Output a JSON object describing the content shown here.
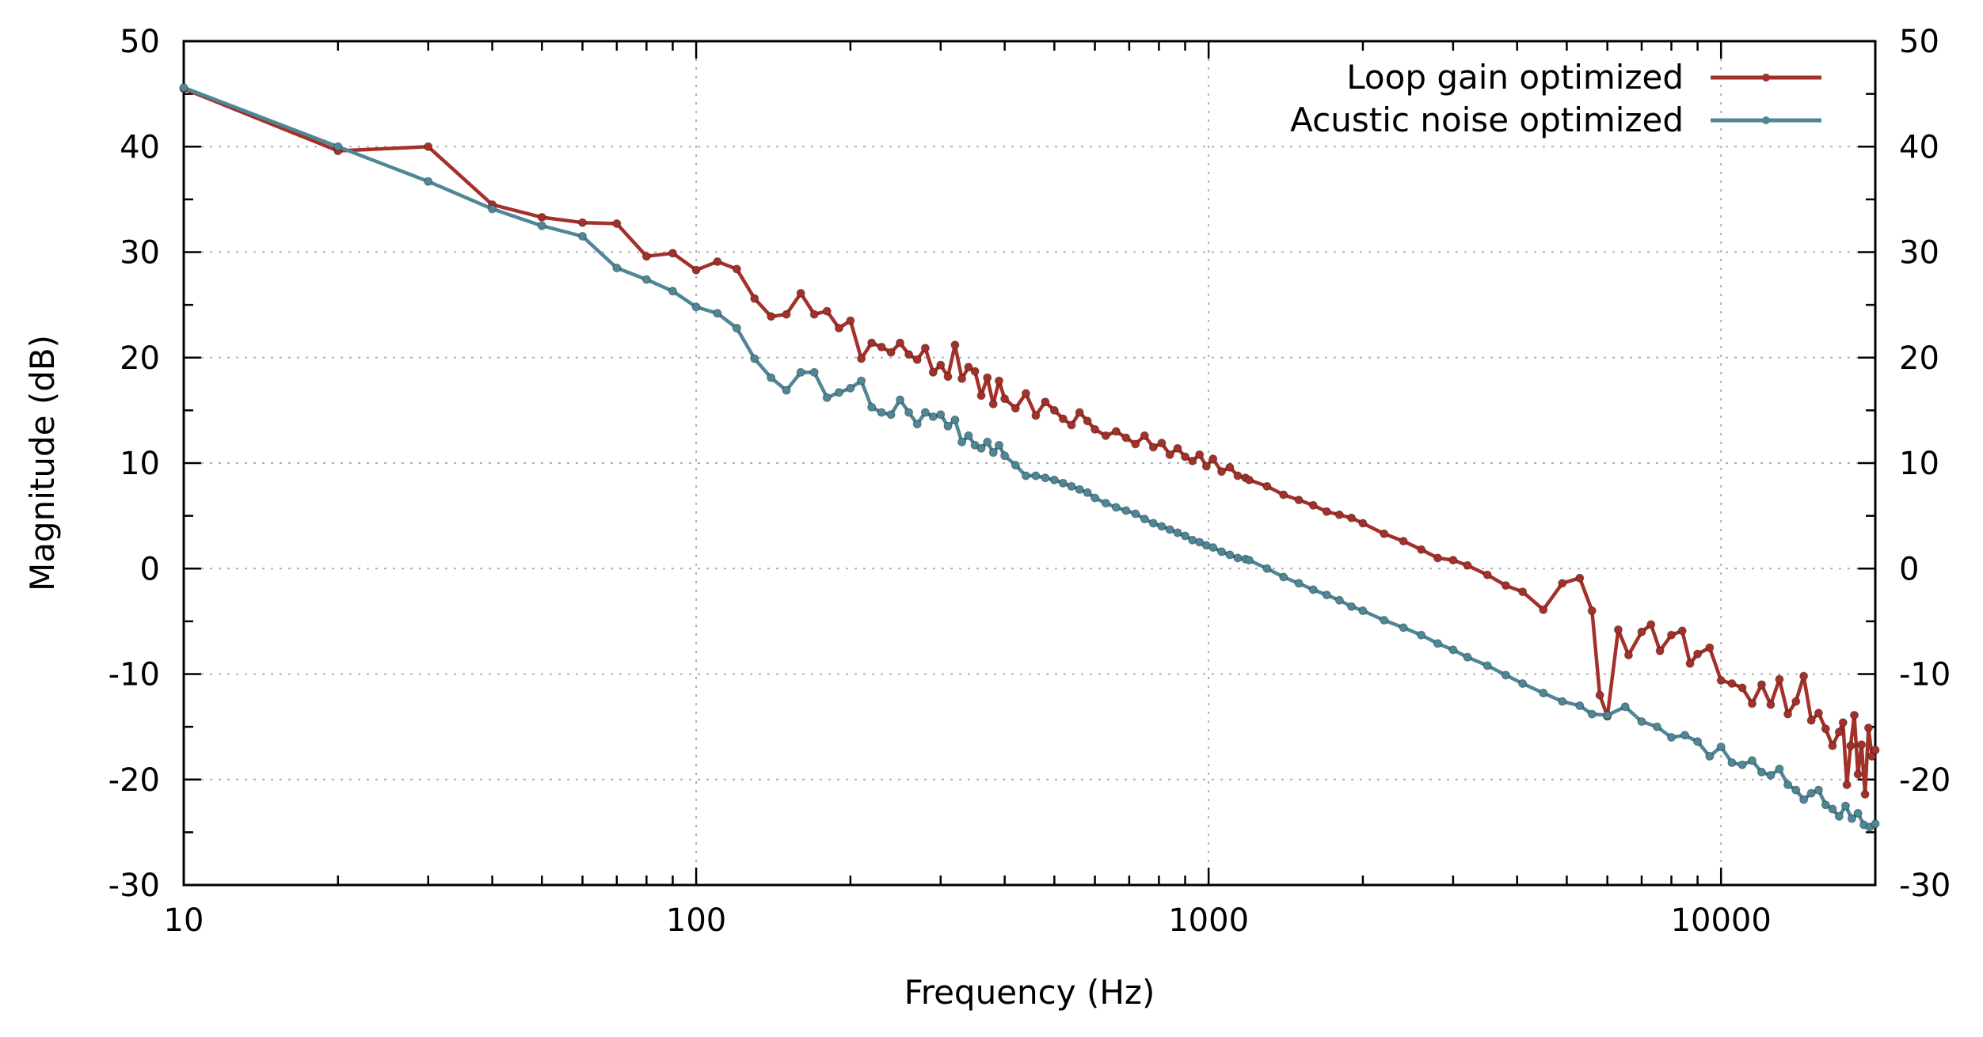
{
  "chart_data": {
    "type": "line",
    "title": "",
    "xlabel": "Frequency (Hz)",
    "ylabel": "Magnitude (dB)",
    "x_scale": "log",
    "xlim": [
      10,
      20000
    ],
    "ylim": [
      -30,
      50
    ],
    "x_ticks": [
      10,
      100,
      1000,
      10000
    ],
    "x_tick_labels": [
      "10",
      "100",
      "1000",
      "10000"
    ],
    "y_ticks": [
      -30,
      -20,
      -10,
      0,
      10,
      20,
      30,
      40,
      50
    ],
    "y_tick_labels": [
      "-30",
      "-20",
      "-10",
      "0",
      "10",
      "20",
      "30",
      "40",
      "50"
    ],
    "y2_tick_labels": [
      "-30",
      "-20",
      "-10",
      "0",
      "10",
      "20",
      "30",
      "40",
      "50"
    ],
    "grid": true,
    "legend_position": "top-right",
    "series": [
      {
        "name": "Loop gain optimized",
        "color": "#a3312a",
        "x": [
          10,
          20,
          30,
          40,
          50,
          60,
          70,
          80,
          90,
          100,
          110,
          120,
          130,
          140,
          150,
          160,
          170,
          180,
          190,
          200,
          210,
          220,
          230,
          240,
          250,
          260,
          270,
          280,
          290,
          300,
          310,
          320,
          330,
          340,
          350,
          360,
          370,
          380,
          390,
          400,
          420,
          440,
          460,
          480,
          500,
          520,
          540,
          560,
          580,
          600,
          630,
          660,
          690,
          720,
          750,
          780,
          810,
          840,
          870,
          900,
          930,
          960,
          990,
          1020,
          1060,
          1100,
          1140,
          1180,
          1200,
          1300,
          1400,
          1500,
          1600,
          1700,
          1800,
          1900,
          2000,
          2200,
          2400,
          2600,
          2800,
          3000,
          3200,
          3500,
          3800,
          4100,
          4500,
          4900,
          5300,
          5600,
          5800,
          6000,
          6300,
          6600,
          7000,
          7300,
          7600,
          8000,
          8400,
          8700,
          9000,
          9500,
          10000,
          10500,
          11000,
          11500,
          12000,
          12500,
          13000,
          13500,
          14000,
          14500,
          15000,
          15500,
          16000,
          16500,
          17000,
          17300,
          17600,
          17900,
          18200,
          18500,
          18800,
          19100,
          19400,
          19700,
          20000
        ],
        "values": [
          45.5,
          39.6,
          40.0,
          34.5,
          33.3,
          32.8,
          32.7,
          29.6,
          29.9,
          28.3,
          29.1,
          28.4,
          25.6,
          23.9,
          24.1,
          26.1,
          24.1,
          24.4,
          22.8,
          23.5,
          19.9,
          21.4,
          21.0,
          20.5,
          21.4,
          20.3,
          19.8,
          20.9,
          18.6,
          19.3,
          18.2,
          21.2,
          18.0,
          19.1,
          18.7,
          16.4,
          18.1,
          15.6,
          17.8,
          16.1,
          15.2,
          16.6,
          14.5,
          15.8,
          15.0,
          14.2,
          13.6,
          14.8,
          14.0,
          13.2,
          12.6,
          13.0,
          12.4,
          11.8,
          12.6,
          11.5,
          11.9,
          10.8,
          11.4,
          10.6,
          10.2,
          10.8,
          9.7,
          10.4,
          9.2,
          9.6,
          8.8,
          8.6,
          8.4,
          7.8,
          7.0,
          6.5,
          6.0,
          5.4,
          5.1,
          4.8,
          4.3,
          3.3,
          2.6,
          1.8,
          1.0,
          0.8,
          0.3,
          -0.6,
          -1.6,
          -2.2,
          -3.9,
          -1.4,
          -0.9,
          -4.0,
          -12.0,
          -14.0,
          -5.8,
          -8.2,
          -6.0,
          -5.3,
          -7.8,
          -6.3,
          -5.9,
          -9.0,
          -8.1,
          -7.5,
          -10.6,
          -10.9,
          -11.3,
          -12.8,
          -11.0,
          -12.9,
          -10.5,
          -13.8,
          -12.6,
          -10.2,
          -14.4,
          -13.7,
          -15.2,
          -16.8,
          -15.5,
          -14.6,
          -20.5,
          -16.8,
          -13.9,
          -19.5,
          -16.7,
          -21.4,
          -15.1,
          -17.8,
          -17.2
        ]
      },
      {
        "name": "Acustic noise optimized",
        "color": "#4f8797",
        "x": [
          10,
          20,
          30,
          40,
          50,
          60,
          70,
          80,
          90,
          100,
          110,
          120,
          130,
          140,
          150,
          160,
          170,
          180,
          190,
          200,
          210,
          220,
          230,
          240,
          250,
          260,
          270,
          280,
          290,
          300,
          310,
          320,
          330,
          340,
          350,
          360,
          370,
          380,
          390,
          400,
          420,
          440,
          460,
          480,
          500,
          520,
          540,
          560,
          580,
          600,
          630,
          660,
          690,
          720,
          750,
          780,
          810,
          840,
          870,
          900,
          930,
          960,
          990,
          1020,
          1060,
          1100,
          1140,
          1180,
          1200,
          1300,
          1400,
          1500,
          1600,
          1700,
          1800,
          1900,
          2000,
          2200,
          2400,
          2600,
          2800,
          3000,
          3200,
          3500,
          3800,
          4100,
          4500,
          4900,
          5300,
          5600,
          6000,
          6500,
          7000,
          7500,
          8000,
          8500,
          9000,
          9500,
          10000,
          10500,
          11000,
          11500,
          12000,
          12500,
          13000,
          13500,
          14000,
          14500,
          15000,
          15500,
          16000,
          16500,
          17000,
          17500,
          18000,
          18500,
          19000,
          19500,
          20000
        ],
        "values": [
          45.6,
          40.0,
          36.7,
          34.1,
          32.5,
          31.5,
          28.5,
          27.4,
          26.3,
          24.8,
          24.2,
          22.8,
          19.9,
          18.1,
          16.9,
          18.6,
          18.6,
          16.2,
          16.7,
          17.1,
          17.8,
          15.3,
          14.8,
          14.6,
          16.0,
          14.8,
          13.7,
          14.8,
          14.4,
          14.6,
          13.5,
          14.1,
          12.0,
          12.6,
          11.7,
          11.4,
          12.0,
          11.0,
          11.7,
          10.7,
          9.8,
          8.8,
          8.8,
          8.6,
          8.4,
          8.1,
          7.8,
          7.5,
          7.2,
          6.7,
          6.2,
          5.8,
          5.5,
          5.2,
          4.7,
          4.3,
          4.0,
          3.7,
          3.4,
          3.1,
          2.7,
          2.5,
          2.2,
          2.0,
          1.6,
          1.3,
          1.0,
          0.9,
          0.8,
          0.0,
          -0.8,
          -1.4,
          -2.0,
          -2.5,
          -3.0,
          -3.6,
          -4.0,
          -4.9,
          -5.6,
          -6.3,
          -7.1,
          -7.7,
          -8.4,
          -9.2,
          -10.1,
          -10.9,
          -11.8,
          -12.6,
          -13.0,
          -13.8,
          -13.9,
          -13.1,
          -14.5,
          -15.0,
          -16.0,
          -15.8,
          -16.4,
          -17.8,
          -16.9,
          -18.4,
          -18.6,
          -18.2,
          -19.3,
          -19.6,
          -19.0,
          -20.5,
          -21.0,
          -21.9,
          -21.3,
          -21.0,
          -22.4,
          -22.8,
          -23.5,
          -22.5,
          -23.7,
          -23.2,
          -24.3,
          -24.5,
          -24.2
        ]
      }
    ]
  }
}
